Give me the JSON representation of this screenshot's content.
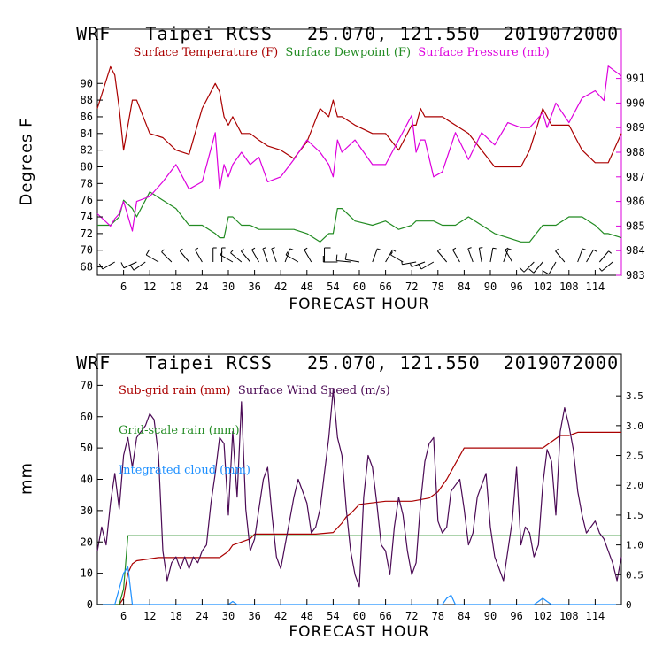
{
  "chart_data": [
    {
      "type": "line",
      "header": {
        "model": "WRF",
        "station": "Taipei RCSS",
        "coords": "25.070, 121.550",
        "init": "2019072000"
      },
      "xlabel": "FORECAST HOUR",
      "ylabel": "Degrees F",
      "xlim": [
        0,
        120
      ],
      "xticks": [
        "6",
        "12",
        "18",
        "24",
        "30",
        "36",
        "42",
        "48",
        "54",
        "60",
        "66",
        "72",
        "78",
        "84",
        "90",
        "96",
        "102",
        "108",
        "114"
      ],
      "ylim_left": [
        67,
        96.5
      ],
      "yticks_left": [
        "68",
        "70",
        "72",
        "74",
        "76",
        "78",
        "80",
        "82",
        "84",
        "86",
        "88",
        "90"
      ],
      "ylim_right": [
        983,
        993
      ],
      "yticks_right": [
        "983",
        "984",
        "985",
        "986",
        "987",
        "988",
        "989",
        "990",
        "991"
      ],
      "legend": [
        "Surface Temperature (F)",
        "Surface Dewpoint (F)",
        "Surface Pressure (mb)"
      ],
      "colors": {
        "temperature": "#aa0000",
        "dewpoint": "#228b22",
        "pressure": "#dd00dd",
        "axes": "#000000",
        "right_axis": "#dd00dd"
      },
      "x": [
        0,
        3,
        4,
        5,
        6,
        8,
        9,
        12,
        15,
        18,
        21,
        24,
        27,
        28,
        29,
        30,
        31,
        33,
        35,
        37,
        39,
        42,
        45,
        48,
        51,
        53,
        54,
        55,
        56,
        59,
        63,
        66,
        69,
        72,
        73,
        74,
        75,
        77,
        79,
        82,
        85,
        88,
        91,
        94,
        97,
        99,
        102,
        103,
        104,
        105,
        108,
        111,
        114,
        116,
        117,
        120
      ],
      "series": [
        {
          "name": "Surface Temperature (F)",
          "axis": "left",
          "values": [
            87,
            92,
            91,
            87,
            82,
            88,
            88,
            84,
            83.5,
            82,
            81.5,
            87,
            90,
            89,
            86,
            85,
            86,
            84,
            84,
            83.2,
            82.5,
            82,
            81,
            83,
            87,
            86,
            88,
            86,
            86,
            85,
            84,
            84,
            82,
            85,
            85,
            87,
            86,
            86,
            86,
            85,
            84,
            82,
            80,
            80,
            80,
            82,
            87,
            86,
            85,
            85,
            85,
            82,
            80.5,
            80.5,
            80.5,
            84
          ]
        },
        {
          "name": "Surface Dewpoint (F)",
          "axis": "left",
          "values": [
            73,
            73,
            73.5,
            74,
            76,
            75,
            74,
            77,
            76,
            75,
            73,
            73,
            72,
            71.5,
            71.5,
            74,
            74,
            73,
            73,
            72.5,
            72.5,
            72.5,
            72.5,
            72,
            71,
            72,
            72,
            75,
            75,
            73.5,
            73,
            73.5,
            72.5,
            73,
            73.5,
            73.5,
            73.5,
            73.5,
            73,
            73,
            74,
            73,
            72,
            71.5,
            71,
            71,
            73,
            73,
            73,
            73,
            74,
            74,
            73,
            72,
            72,
            71.5
          ]
        },
        {
          "name": "Surface Pressure (mb)",
          "axis": "right",
          "values": [
            985.5,
            985,
            985.3,
            985.5,
            986,
            984.8,
            986,
            986.2,
            986.8,
            987.5,
            986.5,
            986.8,
            988.8,
            986.5,
            987.5,
            987,
            987.5,
            988,
            987.5,
            987.8,
            986.8,
            987,
            987.7,
            988.5,
            988,
            987.5,
            987,
            988.5,
            988,
            988.5,
            987.5,
            987.5,
            988.5,
            989.5,
            988,
            988.5,
            988.5,
            987,
            987.2,
            988.8,
            987.7,
            988.8,
            988.3,
            989.2,
            989,
            989,
            989.6,
            989,
            989.5,
            990,
            989.2,
            990.2,
            990.5,
            990.1,
            991.5,
            991.1
          ]
        }
      ],
      "wind_barbs": [
        {
          "x": 4,
          "dir": 240,
          "speed": 10
        },
        {
          "x": 9,
          "dir": 245,
          "speed": 10
        },
        {
          "x": 11,
          "dir": 235,
          "speed": 10
        },
        {
          "x": 14,
          "dir": 300,
          "speed": 10
        },
        {
          "x": 17,
          "dir": 315,
          "speed": 5
        },
        {
          "x": 21,
          "dir": 320,
          "speed": 5
        },
        {
          "x": 24,
          "dir": 330,
          "speed": 5
        },
        {
          "x": 26.5,
          "dir": 0,
          "speed": 5
        },
        {
          "x": 28.5,
          "dir": 0,
          "speed": 5
        },
        {
          "x": 31,
          "dir": 300,
          "speed": 5
        },
        {
          "x": 33,
          "dir": 310,
          "speed": 5
        },
        {
          "x": 35,
          "dir": 320,
          "speed": 5
        },
        {
          "x": 37,
          "dir": 330,
          "speed": 5
        },
        {
          "x": 39,
          "dir": 340,
          "speed": 5
        },
        {
          "x": 41,
          "dir": 340,
          "speed": 5
        },
        {
          "x": 43,
          "dir": 20,
          "speed": 5
        },
        {
          "x": 46,
          "dir": 300,
          "speed": 5
        },
        {
          "x": 49,
          "dir": 330,
          "speed": 5
        },
        {
          "x": 52,
          "dir": 0,
          "speed": 10
        },
        {
          "x": 55,
          "dir": 270,
          "speed": 10
        },
        {
          "x": 58,
          "dir": 275,
          "speed": 10
        },
        {
          "x": 60,
          "dir": 280,
          "speed": 10
        },
        {
          "x": 63,
          "dir": 20,
          "speed": 5
        },
        {
          "x": 66,
          "dir": 30,
          "speed": 5
        },
        {
          "x": 70,
          "dir": 300,
          "speed": 5
        },
        {
          "x": 73,
          "dir": 260,
          "speed": 5
        },
        {
          "x": 75,
          "dir": 250,
          "speed": 5
        },
        {
          "x": 77,
          "dir": 240,
          "speed": 10
        },
        {
          "x": 80,
          "dir": 320,
          "speed": 5
        },
        {
          "x": 83,
          "dir": 330,
          "speed": 5
        },
        {
          "x": 86,
          "dir": 340,
          "speed": 5
        },
        {
          "x": 88,
          "dir": 350,
          "speed": 5
        },
        {
          "x": 90,
          "dir": 10,
          "speed": 5
        },
        {
          "x": 93,
          "dir": 20,
          "speed": 5
        },
        {
          "x": 95,
          "dir": 330,
          "speed": 5
        },
        {
          "x": 100,
          "dir": 225,
          "speed": 10
        },
        {
          "x": 102,
          "dir": 220,
          "speed": 10
        },
        {
          "x": 105,
          "dir": 210,
          "speed": 10
        },
        {
          "x": 107,
          "dir": 320,
          "speed": 5
        },
        {
          "x": 110,
          "dir": 20,
          "speed": 5
        },
        {
          "x": 112,
          "dir": 30,
          "speed": 5
        },
        {
          "x": 115,
          "dir": 40,
          "speed": 5
        },
        {
          "x": 118,
          "dir": 230,
          "speed": 5
        }
      ]
    },
    {
      "type": "line",
      "header": {
        "model": "WRF",
        "station": "Taipei RCSS",
        "coords": "25.070, 121.550",
        "init": "2019072000"
      },
      "xlabel": "FORECAST HOUR",
      "ylabel": "mm",
      "xlim": [
        0,
        120
      ],
      "xticks": [
        "6",
        "12",
        "18",
        "24",
        "30",
        "36",
        "42",
        "48",
        "54",
        "60",
        "66",
        "72",
        "78",
        "84",
        "90",
        "96",
        "102",
        "108",
        "114"
      ],
      "ylim_left": [
        0,
        80
      ],
      "yticks_left": [
        "0",
        "10",
        "20",
        "30",
        "40",
        "50",
        "60",
        "70"
      ],
      "ylim_right": [
        0,
        4.2
      ],
      "yticks_right": [
        "0",
        "0.5",
        "1.0",
        "1.5",
        "2.0",
        "2.5",
        "3.0",
        "3.5"
      ],
      "legend": [
        "Sub-grid rain (mm)",
        "Grid-scale rain (mm)",
        "Integrated cloud (mm)",
        "Surface Wind Speed (m/s)"
      ],
      "colors": {
        "subgrid": "#aa0000",
        "gridscale": "#228b22",
        "cloud": "#1e90ff",
        "wind": "#4b0a55",
        "axes": "#000000"
      },
      "series": [
        {
          "name": "Sub-grid rain (mm)",
          "axis": "left",
          "x": [
            0,
            5,
            6,
            7,
            8,
            9,
            14,
            28,
            30,
            31,
            33,
            35,
            36,
            50,
            54,
            56,
            57,
            58,
            60,
            66,
            70,
            72,
            76,
            78,
            80,
            82,
            84,
            102,
            104,
            106,
            108,
            110,
            120
          ],
          "values": [
            0,
            0,
            2,
            10,
            13,
            14,
            15,
            15,
            17,
            19,
            20,
            21,
            22.5,
            22.5,
            23,
            26,
            28,
            29,
            32,
            33,
            33,
            33,
            34,
            36,
            40,
            45,
            50,
            50,
            52,
            54,
            54,
            55,
            55
          ]
        },
        {
          "name": "Grid-scale rain (mm)",
          "axis": "left",
          "x": [
            0,
            5,
            6,
            7,
            120
          ],
          "values": [
            0,
            0,
            5,
            22,
            22
          ]
        },
        {
          "name": "Integrated cloud (mm)",
          "axis": "left",
          "x": [
            0,
            4,
            6,
            7,
            8,
            30,
            31,
            32,
            79,
            80,
            81,
            82,
            100,
            101,
            102,
            103,
            104,
            120
          ],
          "values": [
            0,
            0,
            10,
            12,
            0,
            0,
            1,
            0,
            0,
            2,
            3,
            0,
            0,
            1,
            2,
            1,
            0,
            0
          ]
        },
        {
          "name": "Surface Wind Speed (m/s)",
          "axis": "right",
          "x": [
            0,
            1,
            2,
            3,
            4,
            5,
            6,
            7,
            8,
            9,
            10,
            11,
            12,
            13,
            14,
            15,
            16,
            17,
            18,
            19,
            20,
            21,
            22,
            23,
            24,
            25,
            26,
            27,
            28,
            29,
            30,
            31,
            32,
            33,
            34,
            35,
            36,
            37,
            38,
            39,
            40,
            41,
            42,
            43,
            44,
            45,
            46,
            47,
            48,
            49,
            50,
            51,
            52,
            53,
            54,
            55,
            56,
            57,
            58,
            59,
            60,
            61,
            62,
            63,
            64,
            65,
            66,
            67,
            68,
            69,
            70,
            71,
            72,
            73,
            74,
            75,
            76,
            77,
            78,
            79,
            80,
            81,
            82,
            83,
            84,
            85,
            86,
            87,
            88,
            89,
            90,
            91,
            92,
            93,
            94,
            95,
            96,
            97,
            98,
            99,
            100,
            101,
            102,
            103,
            104,
            105,
            106,
            107,
            108,
            109,
            110,
            111,
            112,
            113,
            114,
            115,
            116,
            117,
            118,
            119,
            120
          ],
          "values": [
            0.9,
            1.3,
            1.0,
            1.7,
            2.2,
            1.6,
            2.5,
            2.8,
            2.3,
            2.8,
            2.9,
            3.0,
            3.2,
            3.1,
            2.5,
            0.9,
            0.4,
            0.7,
            0.8,
            0.6,
            0.8,
            0.6,
            0.8,
            0.7,
            0.9,
            1.0,
            1.7,
            2.2,
            2.8,
            2.7,
            1.5,
            2.9,
            1.8,
            3.4,
            1.6,
            0.9,
            1.1,
            1.6,
            2.1,
            2.3,
            1.5,
            0.8,
            0.6,
            1.0,
            1.4,
            1.8,
            2.1,
            1.9,
            1.7,
            1.2,
            1.3,
            1.6,
            2.2,
            2.8,
            3.6,
            2.8,
            2.5,
            1.6,
            0.9,
            0.5,
            0.3,
            1.8,
            2.5,
            2.3,
            1.7,
            1.0,
            0.9,
            0.5,
            1.3,
            1.8,
            1.5,
            0.9,
            0.5,
            0.7,
            1.7,
            2.4,
            2.7,
            2.8,
            1.4,
            1.2,
            1.3,
            1.9,
            2.0,
            2.1,
            1.6,
            1.0,
            1.2,
            1.8,
            2.0,
            2.2,
            1.3,
            0.8,
            0.6,
            0.4,
            0.9,
            1.4,
            2.3,
            1.0,
            1.3,
            1.2,
            0.8,
            1.0,
            2.0,
            2.6,
            2.4,
            1.5,
            2.9,
            3.3,
            3.0,
            2.6,
            1.9,
            1.5,
            1.2,
            1.3,
            1.4,
            1.2,
            1.1,
            0.9,
            0.7,
            0.4,
            0.8
          ]
        }
      ]
    }
  ]
}
